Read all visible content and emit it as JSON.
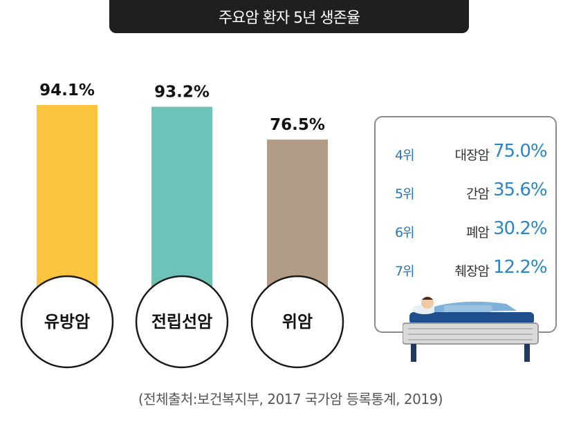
{
  "title": "주요암 환자 5년 생존율",
  "chart_data": {
    "type": "bar",
    "categories": [
      "유방암",
      "전립선암",
      "위암"
    ],
    "values": [
      94.1,
      93.2,
      76.5
    ],
    "value_labels": [
      "94.1%",
      "93.2%",
      "76.5%"
    ],
    "colors": [
      "#fbc43f",
      "#6ec3b8",
      "#b39c85"
    ],
    "title": "주요암 환자 5년 생존율",
    "xlabel": "",
    "ylabel": "",
    "grid": false
  },
  "ranking": [
    {
      "rank": "4위",
      "name": "대장암",
      "value": "75.0%"
    },
    {
      "rank": "5위",
      "name": "간암",
      "value": "35.6%"
    },
    {
      "rank": "6위",
      "name": "폐암",
      "value": "30.2%"
    },
    {
      "rank": "7위",
      "name": "췌장암",
      "value": "12.2%"
    }
  ],
  "source": "(전체출처:보건복지부, 2017 국가암 등록통계, 2019)",
  "icons": [
    "hospital-bed-patient-icon"
  ]
}
